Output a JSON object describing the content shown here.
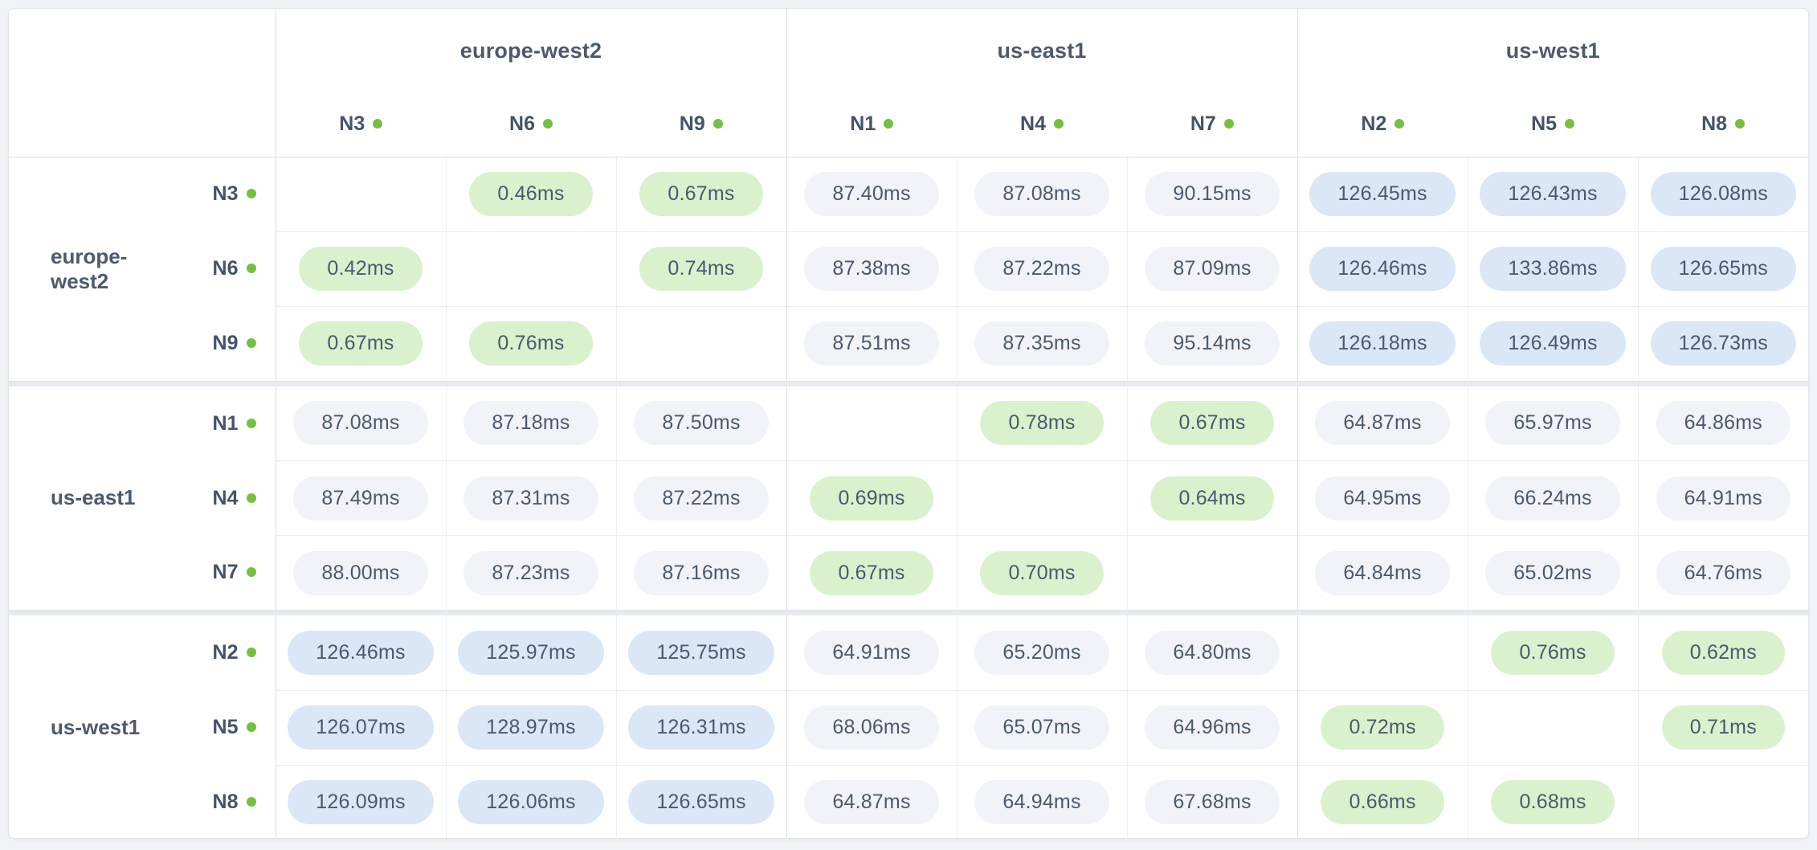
{
  "title": "node-latency-matrix",
  "colors": {
    "page_background": "#f2f3f7",
    "card_background": "#ffffff",
    "grid_line": "#eaecf2",
    "group_line": "#dcdfe9",
    "node_status_dot": "#72c140",
    "text": "#4b596d",
    "low_latency_pill_bg": "#d9f2cd",
    "mid_latency_pill_bg": "#f1f3f8",
    "high_latency_pill_bg": "#dbe7f6"
  },
  "latency_thresholds": {
    "low_below_ms": 10,
    "high_above_ms": 110
  },
  "column_groups": [
    {
      "label": "europe-west2",
      "nodes": [
        "N3",
        "N6",
        "N9"
      ]
    },
    {
      "label": "us-east1",
      "nodes": [
        "N1",
        "N4",
        "N7"
      ]
    },
    {
      "label": "us-west1",
      "nodes": [
        "N2",
        "N5",
        "N8"
      ]
    }
  ],
  "row_groups": [
    {
      "label": "europe-west2",
      "rows": [
        {
          "node": "N3",
          "cells": [
            "",
            "0.46ms",
            "0.67ms",
            "87.40ms",
            "87.08ms",
            "90.15ms",
            "126.45ms",
            "126.43ms",
            "126.08ms"
          ]
        },
        {
          "node": "N6",
          "cells": [
            "0.42ms",
            "",
            "0.74ms",
            "87.38ms",
            "87.22ms",
            "87.09ms",
            "126.46ms",
            "133.86ms",
            "126.65ms"
          ]
        },
        {
          "node": "N9",
          "cells": [
            "0.67ms",
            "0.76ms",
            "",
            "87.51ms",
            "87.35ms",
            "95.14ms",
            "126.18ms",
            "126.49ms",
            "126.73ms"
          ]
        }
      ]
    },
    {
      "label": "us-east1",
      "rows": [
        {
          "node": "N1",
          "cells": [
            "87.08ms",
            "87.18ms",
            "87.50ms",
            "",
            "0.78ms",
            "0.67ms",
            "64.87ms",
            "65.97ms",
            "64.86ms"
          ]
        },
        {
          "node": "N4",
          "cells": [
            "87.49ms",
            "87.31ms",
            "87.22ms",
            "0.69ms",
            "",
            "0.64ms",
            "64.95ms",
            "66.24ms",
            "64.91ms"
          ]
        },
        {
          "node": "N7",
          "cells": [
            "88.00ms",
            "87.23ms",
            "87.16ms",
            "0.67ms",
            "0.70ms",
            "",
            "64.84ms",
            "65.02ms",
            "64.76ms"
          ]
        }
      ]
    },
    {
      "label": "us-west1",
      "rows": [
        {
          "node": "N2",
          "cells": [
            "126.46ms",
            "125.97ms",
            "125.75ms",
            "64.91ms",
            "65.20ms",
            "64.80ms",
            "",
            "0.76ms",
            "0.62ms"
          ]
        },
        {
          "node": "N5",
          "cells": [
            "126.07ms",
            "128.97ms",
            "126.31ms",
            "68.06ms",
            "65.07ms",
            "64.96ms",
            "0.72ms",
            "",
            "0.71ms"
          ]
        },
        {
          "node": "N8",
          "cells": [
            "126.09ms",
            "126.06ms",
            "126.65ms",
            "64.87ms",
            "64.94ms",
            "67.68ms",
            "0.66ms",
            "0.68ms",
            ""
          ]
        }
      ]
    }
  ]
}
